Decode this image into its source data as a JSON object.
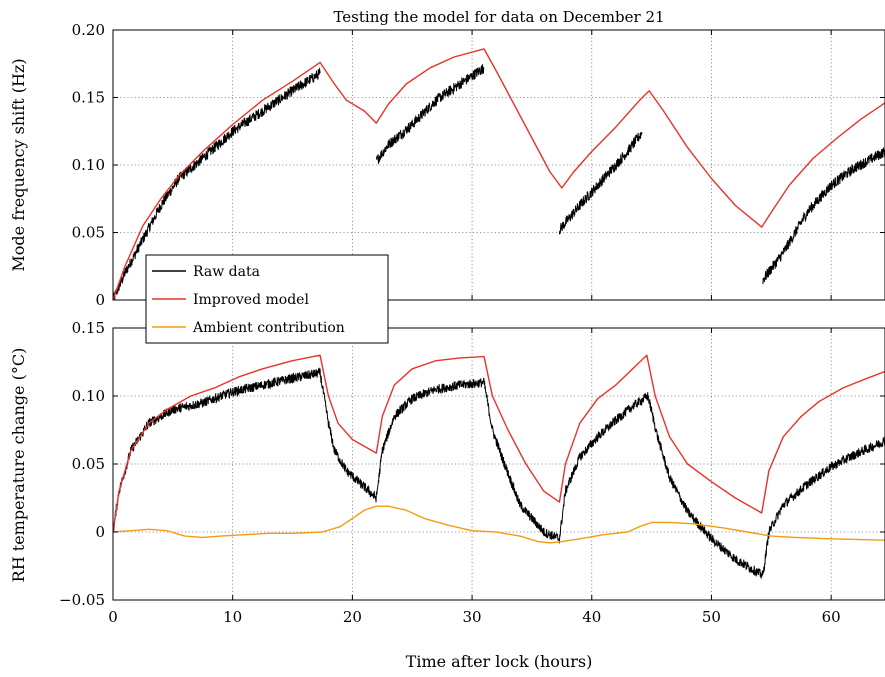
{
  "chart_data": [
    {
      "type": "line",
      "title": "Testing the model for data on December 21",
      "xlabel": "",
      "ylabel": "Mode frequency shift (Hz)",
      "xlim": [
        0,
        64.5
      ],
      "ylim": [
        0,
        0.2
      ],
      "x_ticks": [
        0,
        10,
        20,
        30,
        40,
        50,
        60
      ],
      "y_ticks": [
        0,
        0.05,
        0.1,
        0.15,
        0.2
      ],
      "y_tick_labels": [
        "0",
        "0.05",
        "0.10",
        "0.15",
        "0.20"
      ],
      "grid": true,
      "series": [
        {
          "name": "Raw data",
          "color": "#000000",
          "noise": 0.004,
          "segments": [
            [
              [
                0,
                0
              ],
              [
                1,
                0.02
              ],
              [
                2.5,
                0.045
              ],
              [
                4,
                0.07
              ],
              [
                5.5,
                0.09
              ],
              [
                7.5,
                0.105
              ],
              [
                10,
                0.125
              ],
              [
                12.5,
                0.14
              ],
              [
                15,
                0.155
              ],
              [
                17.3,
                0.168
              ]
            ],
            [
              [
                22,
                0.103
              ],
              [
                23,
                0.115
              ],
              [
                25,
                0.13
              ],
              [
                27,
                0.148
              ],
              [
                29,
                0.16
              ],
              [
                31,
                0.172
              ]
            ],
            [
              [
                37.3,
                0.052
              ],
              [
                39,
                0.07
              ],
              [
                41,
                0.09
              ],
              [
                43,
                0.11
              ],
              [
                44.2,
                0.124
              ]
            ],
            [
              [
                54.3,
                0.015
              ],
              [
                56,
                0.035
              ],
              [
                58,
                0.065
              ],
              [
                60,
                0.085
              ],
              [
                62,
                0.098
              ],
              [
                64.5,
                0.11
              ]
            ]
          ]
        },
        {
          "name": "Improved model",
          "color": "#e8332b",
          "points": [
            [
              0,
              0
            ],
            [
              1,
              0.025
            ],
            [
              2.5,
              0.055
            ],
            [
              4,
              0.075
            ],
            [
              5.5,
              0.092
            ],
            [
              7.5,
              0.11
            ],
            [
              10,
              0.13
            ],
            [
              12.5,
              0.148
            ],
            [
              15,
              0.162
            ],
            [
              17.3,
              0.176
            ],
            [
              18.5,
              0.16
            ],
            [
              19.5,
              0.148
            ],
            [
              21,
              0.14
            ],
            [
              22,
              0.131
            ],
            [
              23,
              0.145
            ],
            [
              24.5,
              0.16
            ],
            [
              26.5,
              0.172
            ],
            [
              28.5,
              0.18
            ],
            [
              31,
              0.186
            ],
            [
              32,
              0.17
            ],
            [
              33.5,
              0.145
            ],
            [
              35,
              0.12
            ],
            [
              36.5,
              0.095
            ],
            [
              37.5,
              0.083
            ],
            [
              38.5,
              0.095
            ],
            [
              40,
              0.11
            ],
            [
              42,
              0.128
            ],
            [
              44,
              0.148
            ],
            [
              44.8,
              0.155
            ],
            [
              46,
              0.14
            ],
            [
              48,
              0.113
            ],
            [
              50,
              0.09
            ],
            [
              52,
              0.07
            ],
            [
              54.2,
              0.054
            ],
            [
              55,
              0.065
            ],
            [
              56.5,
              0.085
            ],
            [
              58.5,
              0.105
            ],
            [
              60.5,
              0.12
            ],
            [
              62.5,
              0.134
            ],
            [
              64.5,
              0.146
            ]
          ]
        }
      ]
    },
    {
      "type": "line",
      "title": "",
      "xlabel": "Time after lock (hours)",
      "ylabel": "RH temperature change (°C)",
      "xlim": [
        0,
        64.5
      ],
      "ylim": [
        -0.05,
        0.15
      ],
      "x_ticks": [
        0,
        10,
        20,
        30,
        40,
        50,
        60
      ],
      "x_tick_labels": [
        "0",
        "10",
        "20",
        "30",
        "40",
        "50",
        "60"
      ],
      "y_ticks": [
        -0.05,
        0,
        0.05,
        0.1,
        0.15
      ],
      "y_tick_labels": [
        "−0.05",
        "0",
        "0.05",
        "0.10",
        "0.15"
      ],
      "grid": true,
      "series": [
        {
          "name": "Raw data",
          "color": "#000000",
          "noise": 0.0035,
          "segments": [
            [
              [
                0,
                0
              ],
              [
                0.5,
                0.03
              ],
              [
                1.5,
                0.06
              ],
              [
                3,
                0.08
              ],
              [
                5,
                0.09
              ],
              [
                7.5,
                0.095
              ],
              [
                10,
                0.103
              ],
              [
                12.5,
                0.108
              ],
              [
                15,
                0.113
              ],
              [
                17.3,
                0.117
              ],
              [
                18,
                0.08
              ],
              [
                18.5,
                0.06
              ],
              [
                19.5,
                0.045
              ],
              [
                21,
                0.033
              ],
              [
                22,
                0.025
              ],
              [
                22.5,
                0.06
              ],
              [
                23.5,
                0.085
              ],
              [
                25,
                0.098
              ],
              [
                27,
                0.105
              ],
              [
                29,
                0.108
              ],
              [
                31,
                0.11
              ],
              [
                31.7,
                0.075
              ],
              [
                32.5,
                0.055
              ],
              [
                34,
                0.02
              ],
              [
                36,
                0.0
              ],
              [
                37.3,
                -0.005
              ],
              [
                37.8,
                0.03
              ],
              [
                39,
                0.055
              ],
              [
                40.5,
                0.07
              ],
              [
                42,
                0.082
              ],
              [
                43.5,
                0.093
              ],
              [
                44.7,
                0.1
              ],
              [
                45.5,
                0.07
              ],
              [
                46.5,
                0.04
              ],
              [
                48,
                0.015
              ],
              [
                50,
                -0.005
              ],
              [
                52,
                -0.02
              ],
              [
                54.3,
                -0.032
              ],
              [
                54.8,
                0.0
              ],
              [
                56,
                0.02
              ],
              [
                58,
                0.035
              ],
              [
                60,
                0.048
              ],
              [
                62,
                0.057
              ],
              [
                64.5,
                0.067
              ]
            ]
          ]
        },
        {
          "name": "Improved model",
          "color": "#e8332b",
          "points": [
            [
              0,
              0
            ],
            [
              0.5,
              0.03
            ],
            [
              1.5,
              0.06
            ],
            [
              3,
              0.08
            ],
            [
              4.5,
              0.09
            ],
            [
              6.5,
              0.1
            ],
            [
              8.5,
              0.106
            ],
            [
              10.5,
              0.114
            ],
            [
              12.5,
              0.12
            ],
            [
              15,
              0.126
            ],
            [
              17.3,
              0.13
            ],
            [
              18,
              0.1
            ],
            [
              18.8,
              0.08
            ],
            [
              20,
              0.068
            ],
            [
              22,
              0.058
            ],
            [
              22.5,
              0.085
            ],
            [
              23.5,
              0.108
            ],
            [
              25,
              0.12
            ],
            [
              27,
              0.126
            ],
            [
              29,
              0.128
            ],
            [
              31,
              0.129
            ],
            [
              31.7,
              0.1
            ],
            [
              33,
              0.075
            ],
            [
              34.5,
              0.05
            ],
            [
              36,
              0.03
            ],
            [
              37.3,
              0.022
            ],
            [
              37.8,
              0.05
            ],
            [
              39,
              0.08
            ],
            [
              40.5,
              0.098
            ],
            [
              42,
              0.108
            ],
            [
              44.6,
              0.13
            ],
            [
              45.3,
              0.1
            ],
            [
              46.5,
              0.07
            ],
            [
              48,
              0.05
            ],
            [
              50,
              0.037
            ],
            [
              52,
              0.025
            ],
            [
              54.2,
              0.014
            ],
            [
              54.8,
              0.045
            ],
            [
              56,
              0.07
            ],
            [
              57.5,
              0.085
            ],
            [
              59,
              0.096
            ],
            [
              61,
              0.106
            ],
            [
              63,
              0.113
            ],
            [
              64.5,
              0.118
            ]
          ]
        },
        {
          "name": "Ambient contribution",
          "color": "#f39c12",
          "points": [
            [
              0,
              0
            ],
            [
              1.5,
              0.001
            ],
            [
              3,
              0.002
            ],
            [
              4.5,
              0.001
            ],
            [
              6,
              -0.003
            ],
            [
              7.5,
              -0.004
            ],
            [
              9,
              -0.003
            ],
            [
              11,
              -0.002
            ],
            [
              13,
              -0.001
            ],
            [
              15,
              -0.001
            ],
            [
              17.5,
              0.0
            ],
            [
              19,
              0.004
            ],
            [
              20,
              0.01
            ],
            [
              21,
              0.016
            ],
            [
              22,
              0.019
            ],
            [
              23,
              0.019
            ],
            [
              24.5,
              0.016
            ],
            [
              26,
              0.01
            ],
            [
              28,
              0.005
            ],
            [
              30,
              0.001
            ],
            [
              32,
              0.0
            ],
            [
              34,
              -0.003
            ],
            [
              35.5,
              -0.007
            ],
            [
              36.5,
              -0.008
            ],
            [
              37.5,
              -0.007
            ],
            [
              39,
              -0.005
            ],
            [
              41,
              -0.002
            ],
            [
              43,
              0.0
            ],
            [
              44,
              0.004
            ],
            [
              45,
              0.007
            ],
            [
              46.5,
              0.007
            ],
            [
              48.5,
              0.006
            ],
            [
              51,
              0.003
            ],
            [
              53,
              0.0
            ],
            [
              55,
              -0.003
            ],
            [
              57,
              -0.004
            ],
            [
              60,
              -0.005
            ],
            [
              64.5,
              -0.006
            ]
          ]
        }
      ]
    }
  ],
  "legend": {
    "placement": "bottom-left",
    "entries": [
      {
        "label": "Raw data",
        "color": "#000000"
      },
      {
        "label": "Improved model",
        "color": "#e8332b"
      },
      {
        "label": "Ambient contribution",
        "color": "#f39c12"
      }
    ]
  }
}
